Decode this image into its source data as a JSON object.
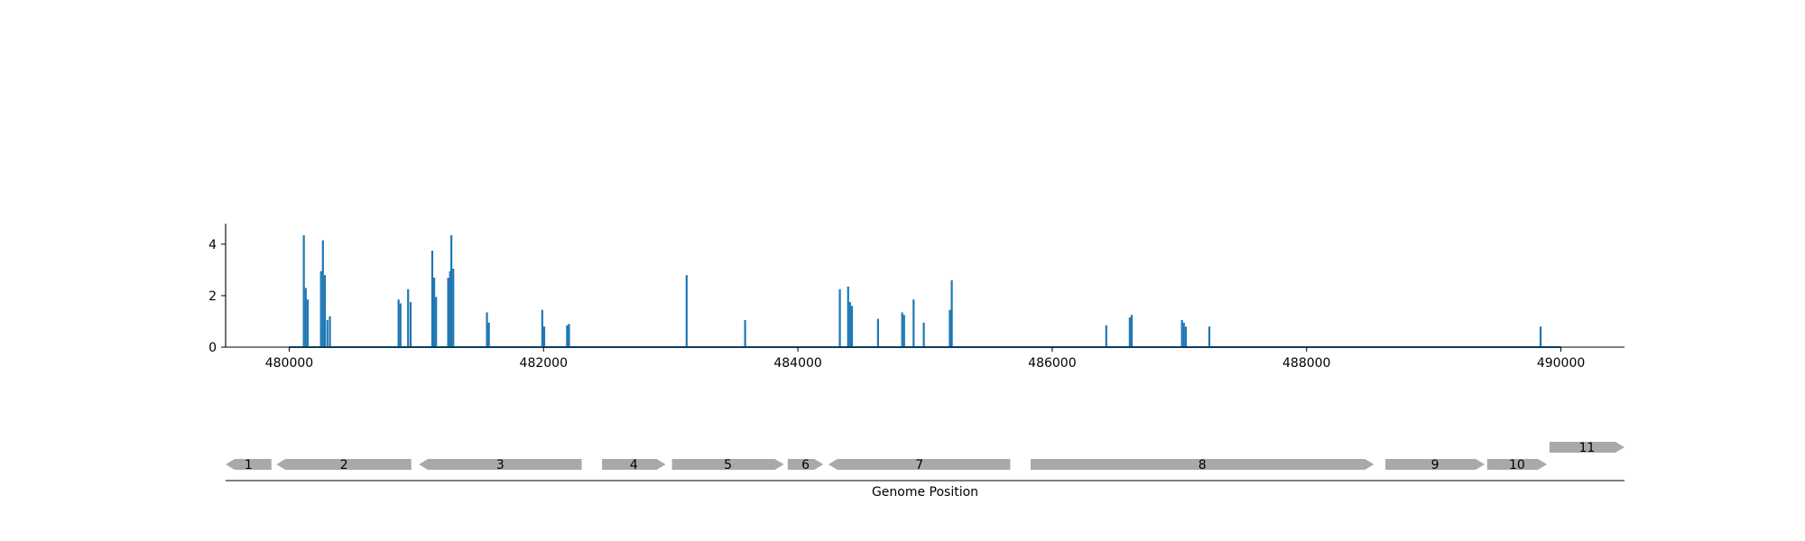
{
  "colors": {
    "signal": "#1f77b4",
    "gene": "#a9a9a9",
    "axis": "#000000",
    "background": "#ffffff"
  },
  "chart_data": [
    {
      "type": "bar",
      "title": "",
      "xlabel": "",
      "ylabel": "",
      "xlim": [
        479500,
        490500
      ],
      "ylim": [
        0,
        4.8
      ],
      "xticks": [
        480000,
        482000,
        484000,
        486000,
        488000,
        490000
      ],
      "xtick_labels": [
        "480000",
        "482000",
        "484000",
        "486000",
        "488000",
        "490000"
      ],
      "yticks": [
        0,
        2,
        4
      ],
      "ytick_labels": [
        "0",
        "2",
        "4"
      ],
      "grid": false,
      "baseline": {
        "from": 480000,
        "to": 490000,
        "value": 0
      },
      "points": [
        {
          "x": 480115,
          "y": 4.35
        },
        {
          "x": 480130,
          "y": 2.3
        },
        {
          "x": 480145,
          "y": 1.85
        },
        {
          "x": 480250,
          "y": 2.95
        },
        {
          "x": 480265,
          "y": 4.15
        },
        {
          "x": 480280,
          "y": 2.8
        },
        {
          "x": 480300,
          "y": 1.05
        },
        {
          "x": 480320,
          "y": 1.2
        },
        {
          "x": 480860,
          "y": 1.85
        },
        {
          "x": 480875,
          "y": 1.7
        },
        {
          "x": 480935,
          "y": 2.25
        },
        {
          "x": 480955,
          "y": 1.75
        },
        {
          "x": 481125,
          "y": 3.75
        },
        {
          "x": 481140,
          "y": 2.7
        },
        {
          "x": 481155,
          "y": 1.95
        },
        {
          "x": 481250,
          "y": 2.7
        },
        {
          "x": 481265,
          "y": 2.95
        },
        {
          "x": 481275,
          "y": 4.35
        },
        {
          "x": 481290,
          "y": 3.05
        },
        {
          "x": 481555,
          "y": 1.35
        },
        {
          "x": 481570,
          "y": 0.95
        },
        {
          "x": 481990,
          "y": 1.45
        },
        {
          "x": 482005,
          "y": 0.8
        },
        {
          "x": 482185,
          "y": 0.85
        },
        {
          "x": 482200,
          "y": 0.9
        },
        {
          "x": 483125,
          "y": 2.8
        },
        {
          "x": 483585,
          "y": 1.05
        },
        {
          "x": 484330,
          "y": 2.25
        },
        {
          "x": 484395,
          "y": 2.35
        },
        {
          "x": 484410,
          "y": 1.75
        },
        {
          "x": 484425,
          "y": 1.6
        },
        {
          "x": 484630,
          "y": 1.1
        },
        {
          "x": 484820,
          "y": 1.35
        },
        {
          "x": 484835,
          "y": 1.25
        },
        {
          "x": 484910,
          "y": 1.85
        },
        {
          "x": 484990,
          "y": 0.95
        },
        {
          "x": 485195,
          "y": 1.45
        },
        {
          "x": 485210,
          "y": 2.6
        },
        {
          "x": 486425,
          "y": 0.85
        },
        {
          "x": 486610,
          "y": 1.15
        },
        {
          "x": 486625,
          "y": 1.25
        },
        {
          "x": 487020,
          "y": 1.05
        },
        {
          "x": 487035,
          "y": 0.95
        },
        {
          "x": 487050,
          "y": 0.8
        },
        {
          "x": 487235,
          "y": 0.8
        },
        {
          "x": 489840,
          "y": 0.8
        }
      ]
    },
    {
      "type": "gene_track",
      "xlabel": "Genome Position",
      "xlim": [
        479500,
        490500
      ],
      "genes": [
        {
          "label": "1",
          "start": 479500,
          "end": 479860,
          "strand": "-",
          "row": 0
        },
        {
          "label": "2",
          "start": 479900,
          "end": 480960,
          "strand": "-",
          "row": 0
        },
        {
          "label": "3",
          "start": 481020,
          "end": 482300,
          "strand": "-",
          "row": 0
        },
        {
          "label": "4",
          "start": 482460,
          "end": 482960,
          "strand": "+",
          "row": 0
        },
        {
          "label": "5",
          "start": 483010,
          "end": 483890,
          "strand": "+",
          "row": 0
        },
        {
          "label": "6",
          "start": 483920,
          "end": 484200,
          "strand": "+",
          "row": 0
        },
        {
          "label": "7",
          "start": 484240,
          "end": 485670,
          "strand": "-",
          "row": 0
        },
        {
          "label": "8",
          "start": 485830,
          "end": 488530,
          "strand": "+",
          "row": 0
        },
        {
          "label": "9",
          "start": 488620,
          "end": 489400,
          "strand": "+",
          "row": 0
        },
        {
          "label": "10",
          "start": 489420,
          "end": 489890,
          "strand": "+",
          "row": 0
        },
        {
          "label": "11",
          "start": 489910,
          "end": 490500,
          "strand": "+",
          "row": 1
        }
      ]
    }
  ]
}
